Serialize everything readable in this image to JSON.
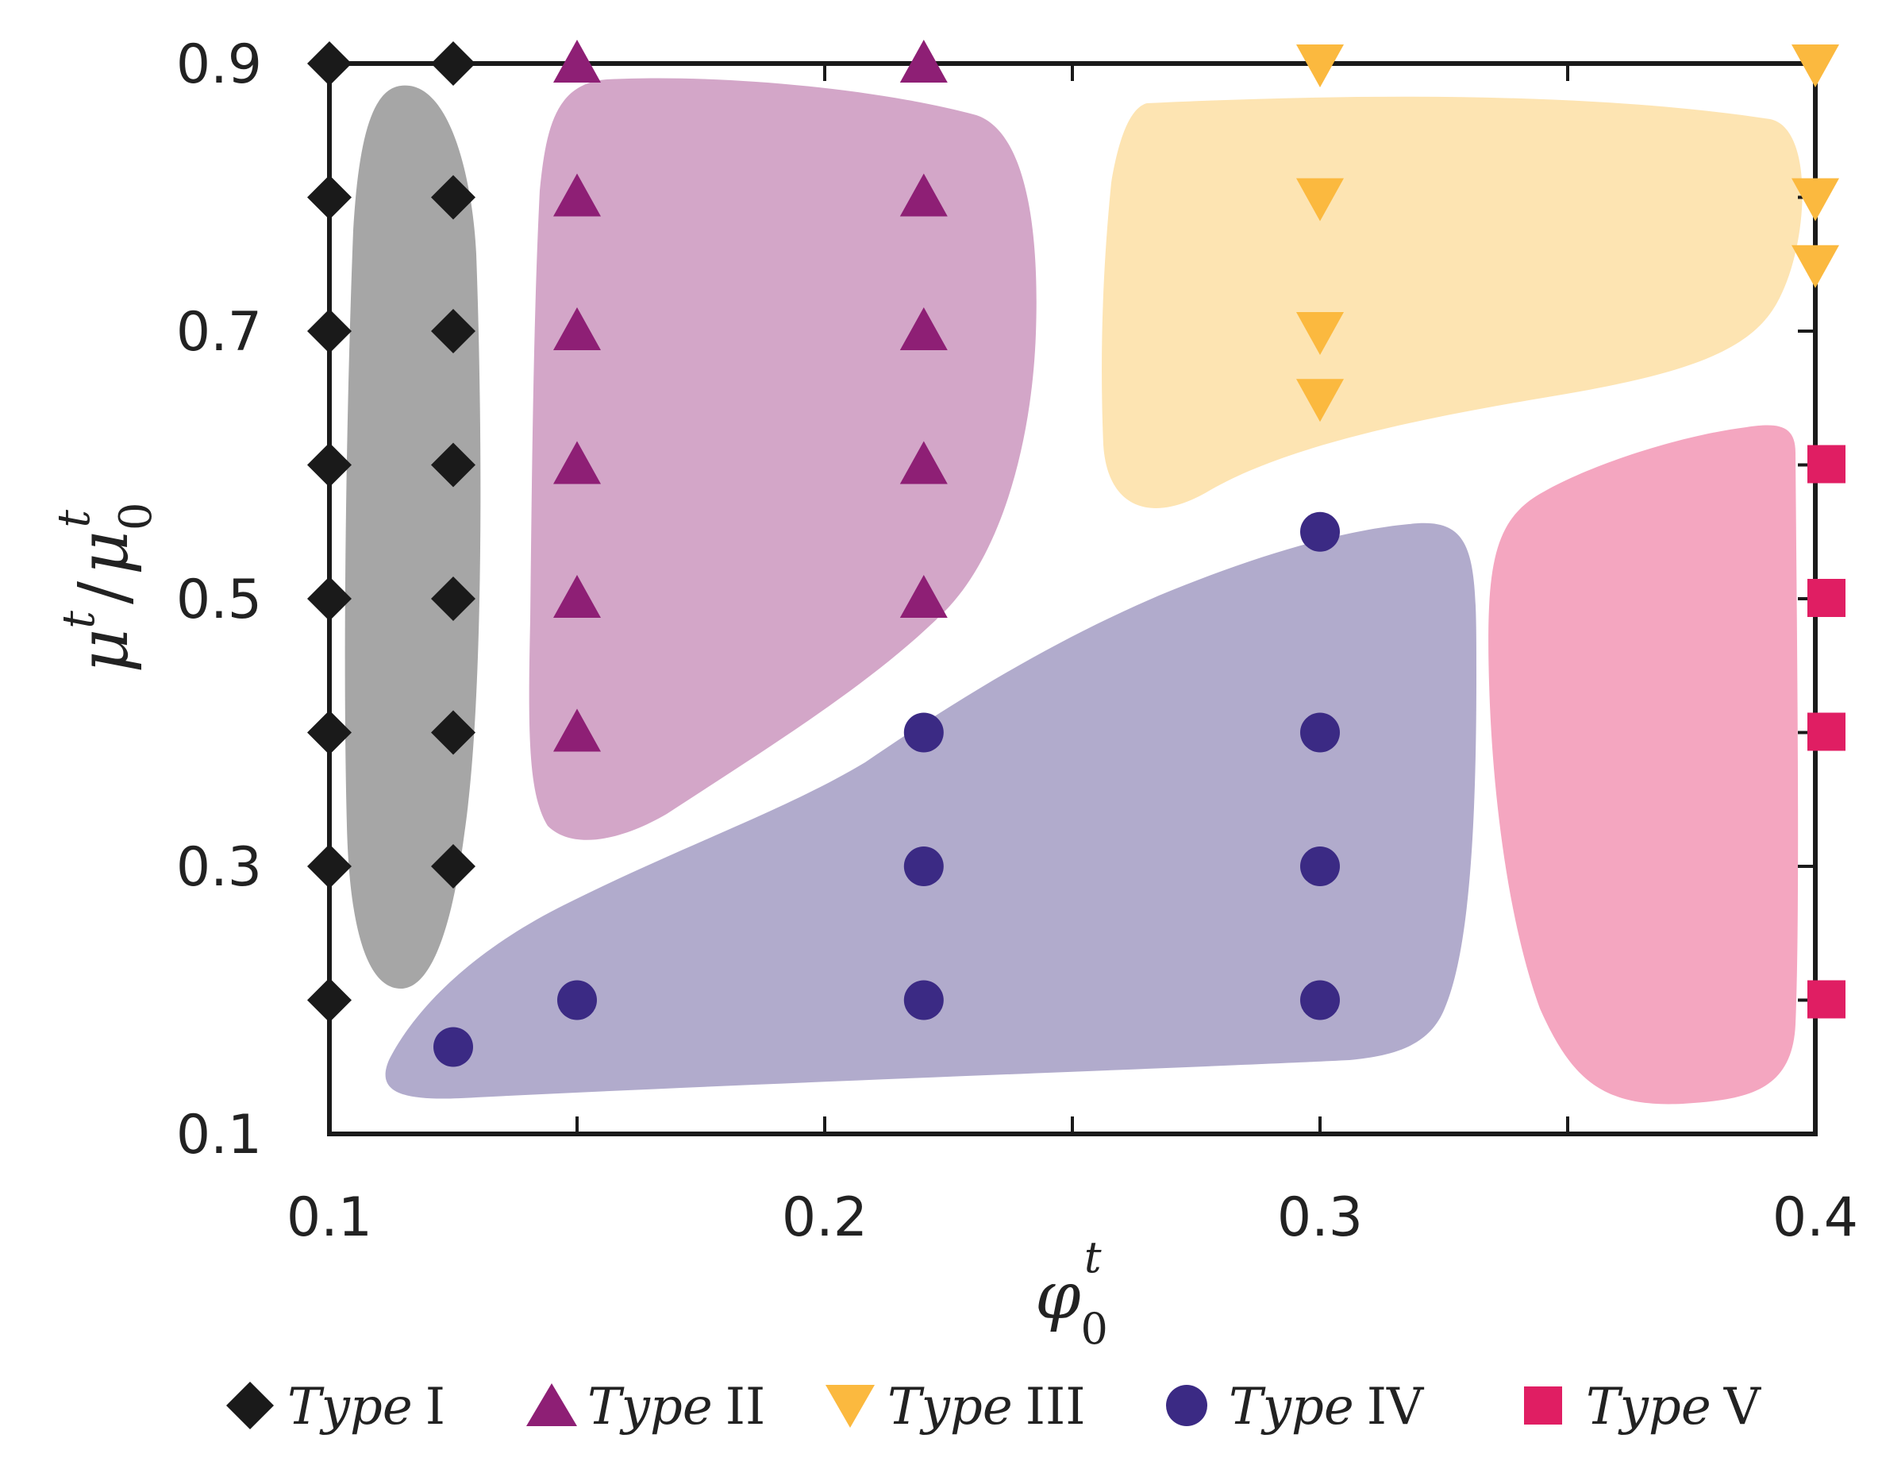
{
  "chart_data": {
    "type": "scatter",
    "title": "",
    "xlabel": "φ",
    "xlabel_sup": "t",
    "xlabel_sub": "0",
    "ylabel_parts": {
      "num": "μ",
      "num_sup": "t",
      "slash": "/",
      "den": "μ",
      "den_sup": "t",
      "den_sub": "0"
    },
    "xlim": [
      0.1,
      0.4
    ],
    "ylim": [
      0.1,
      0.9
    ],
    "xticks": [
      "0.1",
      "0.2",
      "0.3",
      "0.4"
    ],
    "xtick_values": [
      0.1,
      0.2,
      0.3,
      0.4
    ],
    "yticks": [
      "0.1",
      "0.3",
      "0.5",
      "0.7",
      "0.9"
    ],
    "ytick_values": [
      0.1,
      0.3,
      0.5,
      0.7,
      0.9
    ],
    "minor_xticks": [
      0.15,
      0.25,
      0.35
    ],
    "minor_yticks": [
      0.2,
      0.4,
      0.6,
      0.8
    ],
    "legend_position": "bottom",
    "series": [
      {
        "name": "Type I",
        "name_italic": "Type",
        "name_roman": "I",
        "marker": "diamond",
        "color": "#1a1a1a",
        "region_color": "#a6a6a6",
        "points": [
          [
            0.1,
            0.9
          ],
          [
            0.1,
            0.8
          ],
          [
            0.1,
            0.7
          ],
          [
            0.1,
            0.6
          ],
          [
            0.1,
            0.5
          ],
          [
            0.1,
            0.4
          ],
          [
            0.1,
            0.3
          ],
          [
            0.1,
            0.2
          ],
          [
            0.125,
            0.9
          ],
          [
            0.125,
            0.8
          ],
          [
            0.125,
            0.7
          ],
          [
            0.125,
            0.6
          ],
          [
            0.125,
            0.5
          ],
          [
            0.125,
            0.4
          ],
          [
            0.125,
            0.3
          ]
        ]
      },
      {
        "name": "Type II",
        "name_italic": "Type",
        "name_roman": "II",
        "marker": "triangle-up",
        "color": "#8e1f75",
        "region_color": "#d3a6c8",
        "points": [
          [
            0.15,
            0.9
          ],
          [
            0.15,
            0.8
          ],
          [
            0.15,
            0.7
          ],
          [
            0.15,
            0.6
          ],
          [
            0.15,
            0.5
          ],
          [
            0.15,
            0.4
          ],
          [
            0.22,
            0.9
          ],
          [
            0.22,
            0.8
          ],
          [
            0.22,
            0.7
          ],
          [
            0.22,
            0.6
          ],
          [
            0.22,
            0.5
          ]
        ]
      },
      {
        "name": "Type III",
        "name_italic": "Type",
        "name_roman": "III",
        "marker": "triangle-down",
        "color": "#fbb93f",
        "region_color": "#fde4b2",
        "points": [
          [
            0.3,
            0.9
          ],
          [
            0.3,
            0.8
          ],
          [
            0.3,
            0.7
          ],
          [
            0.3,
            0.65
          ],
          [
            0.4,
            0.9
          ],
          [
            0.4,
            0.8
          ],
          [
            0.4,
            0.75
          ]
        ]
      },
      {
        "name": "Type IV",
        "name_italic": "Type",
        "name_roman": "IV",
        "marker": "circle",
        "color": "#3b2a84",
        "region_color": "#b1abcc",
        "points": [
          [
            0.125,
            0.165
          ],
          [
            0.15,
            0.2
          ],
          [
            0.22,
            0.2
          ],
          [
            0.22,
            0.3
          ],
          [
            0.22,
            0.4
          ],
          [
            0.3,
            0.2
          ],
          [
            0.3,
            0.3
          ],
          [
            0.3,
            0.4
          ],
          [
            0.3,
            0.55
          ]
        ]
      },
      {
        "name": "Type V",
        "name_italic": "Type",
        "name_roman": "V",
        "marker": "square",
        "color": "#e01e63",
        "region_color": "#f4a6c0",
        "points": [
          [
            0.4,
            0.6
          ],
          [
            0.4,
            0.5
          ],
          [
            0.4,
            0.4
          ],
          [
            0.4,
            0.2
          ]
        ]
      }
    ]
  }
}
